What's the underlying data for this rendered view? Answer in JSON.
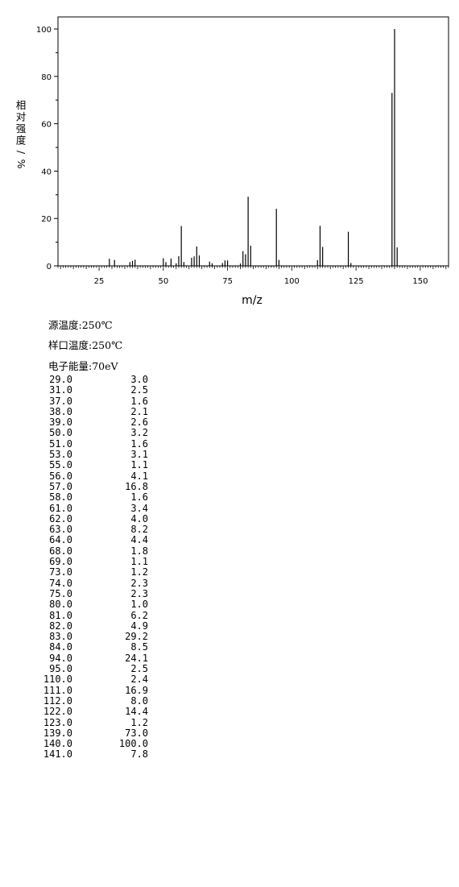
{
  "chart_data": {
    "type": "bar",
    "xlabel": "m/z",
    "ylabel": "相对强度/%",
    "xlim": [
      9,
      161
    ],
    "ylim": [
      0,
      100
    ],
    "x_ticks": [
      25,
      50,
      75,
      100,
      125,
      150
    ],
    "y_ticks": [
      0,
      20,
      40,
      60,
      80,
      100
    ],
    "grid": false,
    "peaks": [
      {
        "mz": 29.0,
        "intensity": 3.0
      },
      {
        "mz": 31.0,
        "intensity": 2.5
      },
      {
        "mz": 37.0,
        "intensity": 1.6
      },
      {
        "mz": 38.0,
        "intensity": 2.1
      },
      {
        "mz": 39.0,
        "intensity": 2.6
      },
      {
        "mz": 50.0,
        "intensity": 3.2
      },
      {
        "mz": 51.0,
        "intensity": 1.6
      },
      {
        "mz": 53.0,
        "intensity": 3.1
      },
      {
        "mz": 55.0,
        "intensity": 1.1
      },
      {
        "mz": 56.0,
        "intensity": 4.1
      },
      {
        "mz": 57.0,
        "intensity": 16.8
      },
      {
        "mz": 58.0,
        "intensity": 1.6
      },
      {
        "mz": 61.0,
        "intensity": 3.4
      },
      {
        "mz": 62.0,
        "intensity": 4.0
      },
      {
        "mz": 63.0,
        "intensity": 8.2
      },
      {
        "mz": 64.0,
        "intensity": 4.4
      },
      {
        "mz": 68.0,
        "intensity": 1.8
      },
      {
        "mz": 69.0,
        "intensity": 1.1
      },
      {
        "mz": 73.0,
        "intensity": 1.2
      },
      {
        "mz": 74.0,
        "intensity": 2.3
      },
      {
        "mz": 75.0,
        "intensity": 2.3
      },
      {
        "mz": 80.0,
        "intensity": 1.0
      },
      {
        "mz": 81.0,
        "intensity": 6.2
      },
      {
        "mz": 82.0,
        "intensity": 4.9
      },
      {
        "mz": 83.0,
        "intensity": 29.2
      },
      {
        "mz": 84.0,
        "intensity": 8.5
      },
      {
        "mz": 94.0,
        "intensity": 24.1
      },
      {
        "mz": 95.0,
        "intensity": 2.5
      },
      {
        "mz": 110.0,
        "intensity": 2.4
      },
      {
        "mz": 111.0,
        "intensity": 16.9
      },
      {
        "mz": 112.0,
        "intensity": 8.0
      },
      {
        "mz": 122.0,
        "intensity": 14.4
      },
      {
        "mz": 123.0,
        "intensity": 1.2
      },
      {
        "mz": 139.0,
        "intensity": 73.0
      },
      {
        "mz": 140.0,
        "intensity": 100.0
      },
      {
        "mz": 141.0,
        "intensity": 7.8
      }
    ]
  },
  "conditions": {
    "source_temp": "源温度:250℃",
    "inlet_temp": "样口温度:250℃",
    "electron_energy": "电子能量:70eV"
  },
  "peak_table": [
    [
      "29.0",
      "3.0"
    ],
    [
      "31.0",
      "2.5"
    ],
    [
      "37.0",
      "1.6"
    ],
    [
      "38.0",
      "2.1"
    ],
    [
      "39.0",
      "2.6"
    ],
    [
      "50.0",
      "3.2"
    ],
    [
      "51.0",
      "1.6"
    ],
    [
      "53.0",
      "3.1"
    ],
    [
      "55.0",
      "1.1"
    ],
    [
      "56.0",
      "4.1"
    ],
    [
      "57.0",
      "16.8"
    ],
    [
      "58.0",
      "1.6"
    ],
    [
      "61.0",
      "3.4"
    ],
    [
      "62.0",
      "4.0"
    ],
    [
      "63.0",
      "8.2"
    ],
    [
      "64.0",
      "4.4"
    ],
    [
      "68.0",
      "1.8"
    ],
    [
      "69.0",
      "1.1"
    ],
    [
      "73.0",
      "1.2"
    ],
    [
      "74.0",
      "2.3"
    ],
    [
      "75.0",
      "2.3"
    ],
    [
      "80.0",
      "1.0"
    ],
    [
      "81.0",
      "6.2"
    ],
    [
      "82.0",
      "4.9"
    ],
    [
      "83.0",
      "29.2"
    ],
    [
      "84.0",
      "8.5"
    ],
    [
      "94.0",
      "24.1"
    ],
    [
      "95.0",
      "2.5"
    ],
    [
      "110.0",
      "2.4"
    ],
    [
      "111.0",
      "16.9"
    ],
    [
      "112.0",
      "8.0"
    ],
    [
      "122.0",
      "14.4"
    ],
    [
      "123.0",
      "1.2"
    ],
    [
      "139.0",
      "73.0"
    ],
    [
      "140.0",
      "100.0"
    ],
    [
      "141.0",
      "7.8"
    ]
  ]
}
